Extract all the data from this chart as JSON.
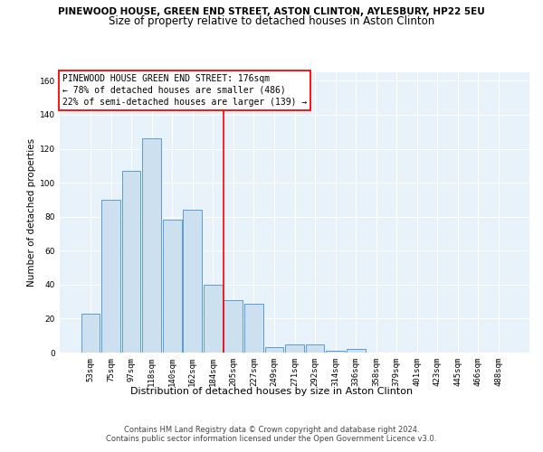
{
  "title1": "PINEWOOD HOUSE, GREEN END STREET, ASTON CLINTON, AYLESBURY, HP22 5EU",
  "title2": "Size of property relative to detached houses in Aston Clinton",
  "xlabel": "Distribution of detached houses by size in Aston Clinton",
  "ylabel": "Number of detached properties",
  "categories": [
    "53sqm",
    "75sqm",
    "97sqm",
    "118sqm",
    "140sqm",
    "162sqm",
    "184sqm",
    "205sqm",
    "227sqm",
    "249sqm",
    "271sqm",
    "292sqm",
    "314sqm",
    "336sqm",
    "358sqm",
    "379sqm",
    "401sqm",
    "423sqm",
    "445sqm",
    "466sqm",
    "488sqm"
  ],
  "values": [
    23,
    90,
    107,
    126,
    78,
    84,
    40,
    31,
    29,
    3,
    5,
    5,
    1,
    2,
    0,
    0,
    0,
    0,
    0,
    0,
    0
  ],
  "bar_color": "#cce0f0",
  "bar_edge_color": "#5b9bd5",
  "ylim_max": 165,
  "yticks": [
    0,
    20,
    40,
    60,
    80,
    100,
    120,
    140,
    160
  ],
  "vline_x": 6.5,
  "vline_color": "red",
  "annotation_line1": "PINEWOOD HOUSE GREEN END STREET: 176sqm",
  "annotation_line2": "← 78% of detached houses are smaller (486)",
  "annotation_line3": "22% of semi-detached houses are larger (139) →",
  "footer1": "Contains HM Land Registry data © Crown copyright and database right 2024.",
  "footer2": "Contains public sector information licensed under the Open Government Licence v3.0.",
  "bg_color": "#e8f2fb",
  "grid_color": "white",
  "title1_fontsize": 7.5,
  "title2_fontsize": 8.5,
  "xlabel_fontsize": 8.0,
  "ylabel_fontsize": 7.5,
  "tick_fontsize": 6.5,
  "annot_fontsize": 7.0,
  "footer_fontsize": 6.0
}
